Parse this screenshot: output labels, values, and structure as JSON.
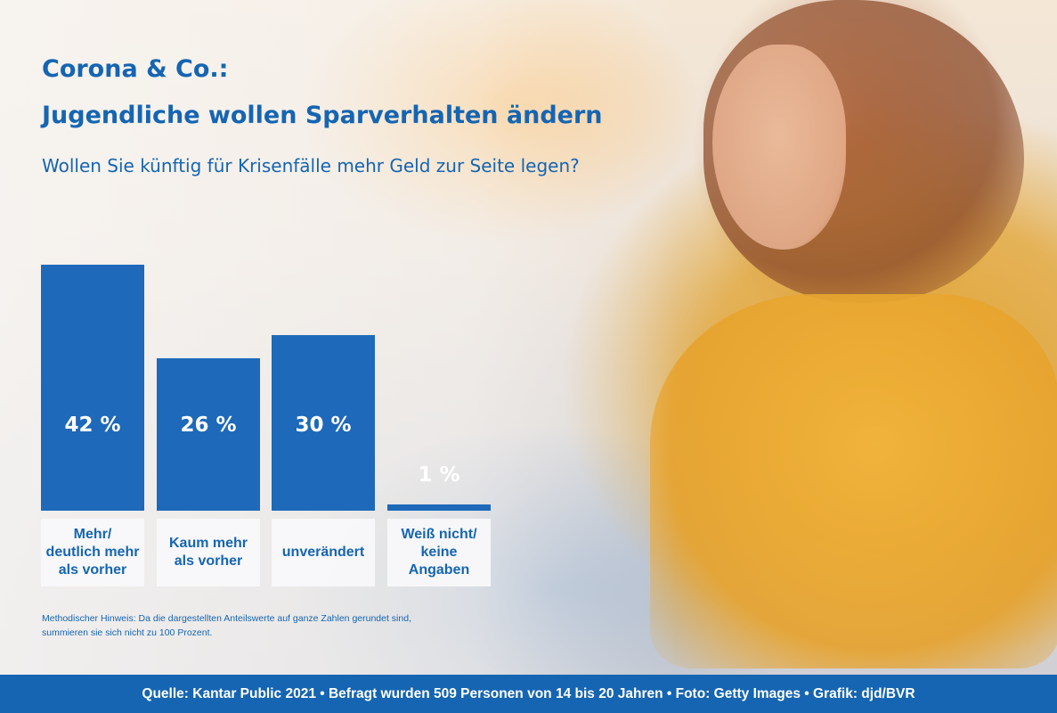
{
  "header": {
    "title_line1": "Corona & Co.:",
    "title_line2": "Jugendliche wollen Sparverhalten ändern",
    "question": "Wollen Sie künftig für Krisenfälle mehr Geld zur Seite legen?"
  },
  "chart_data": {
    "type": "bar",
    "title": "Wollen Sie künftig für Krisenfälle mehr Geld zur Seite legen?",
    "categories": [
      "Mehr/\ndeutlich mehr\nals vorher",
      "Kaum mehr\nals vorher",
      "unverändert",
      "Weiß nicht/\nkeine\nAngaben"
    ],
    "values": [
      42,
      26,
      30,
      1
    ],
    "value_labels": [
      "42 %",
      "26 %",
      "30 %",
      "1 %"
    ],
    "unit": "%",
    "ylim": [
      0,
      42
    ],
    "grid": false,
    "legend": "none",
    "bar_color": "#1e69b9"
  },
  "note": "Methodischer Hinweis: Da die dargestellten Anteilswerte auf ganze Zahlen gerundet sind,\nsummieren sie sich nicht zu 100 Prozent.",
  "footer": "Quelle: Kantar Public 2021 • Befragt wurden 509 Personen von 14 bis 20 Jahren • Foto: Getty Images • Grafik: djd/BVR",
  "colors": {
    "brand_blue": "#1565b2",
    "bar": "#1e69b9"
  }
}
